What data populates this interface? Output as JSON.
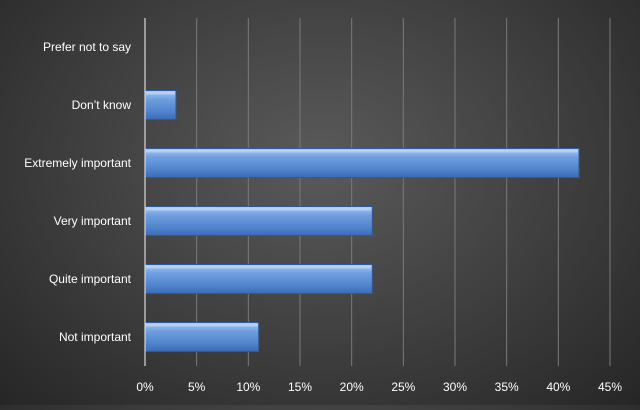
{
  "chart_data": {
    "type": "bar",
    "orientation": "horizontal",
    "categories": [
      "Prefer not to say",
      "Don’t know",
      "Extremely important",
      "Very important",
      "Quite important",
      "Not important"
    ],
    "values": [
      0,
      3,
      42,
      22,
      22,
      11
    ],
    "value_unit": "%",
    "title": "",
    "xlabel": "",
    "ylabel": "",
    "xlim": [
      0,
      45
    ],
    "x_ticks": [
      "0%",
      "5%",
      "10%",
      "15%",
      "20%",
      "25%",
      "30%",
      "35%",
      "40%",
      "45%"
    ],
    "grid": "vertical",
    "legend": "none",
    "bar_color": "#5b8fd6",
    "background_color": "#3e3e3e",
    "text_color": "#ffffff"
  }
}
